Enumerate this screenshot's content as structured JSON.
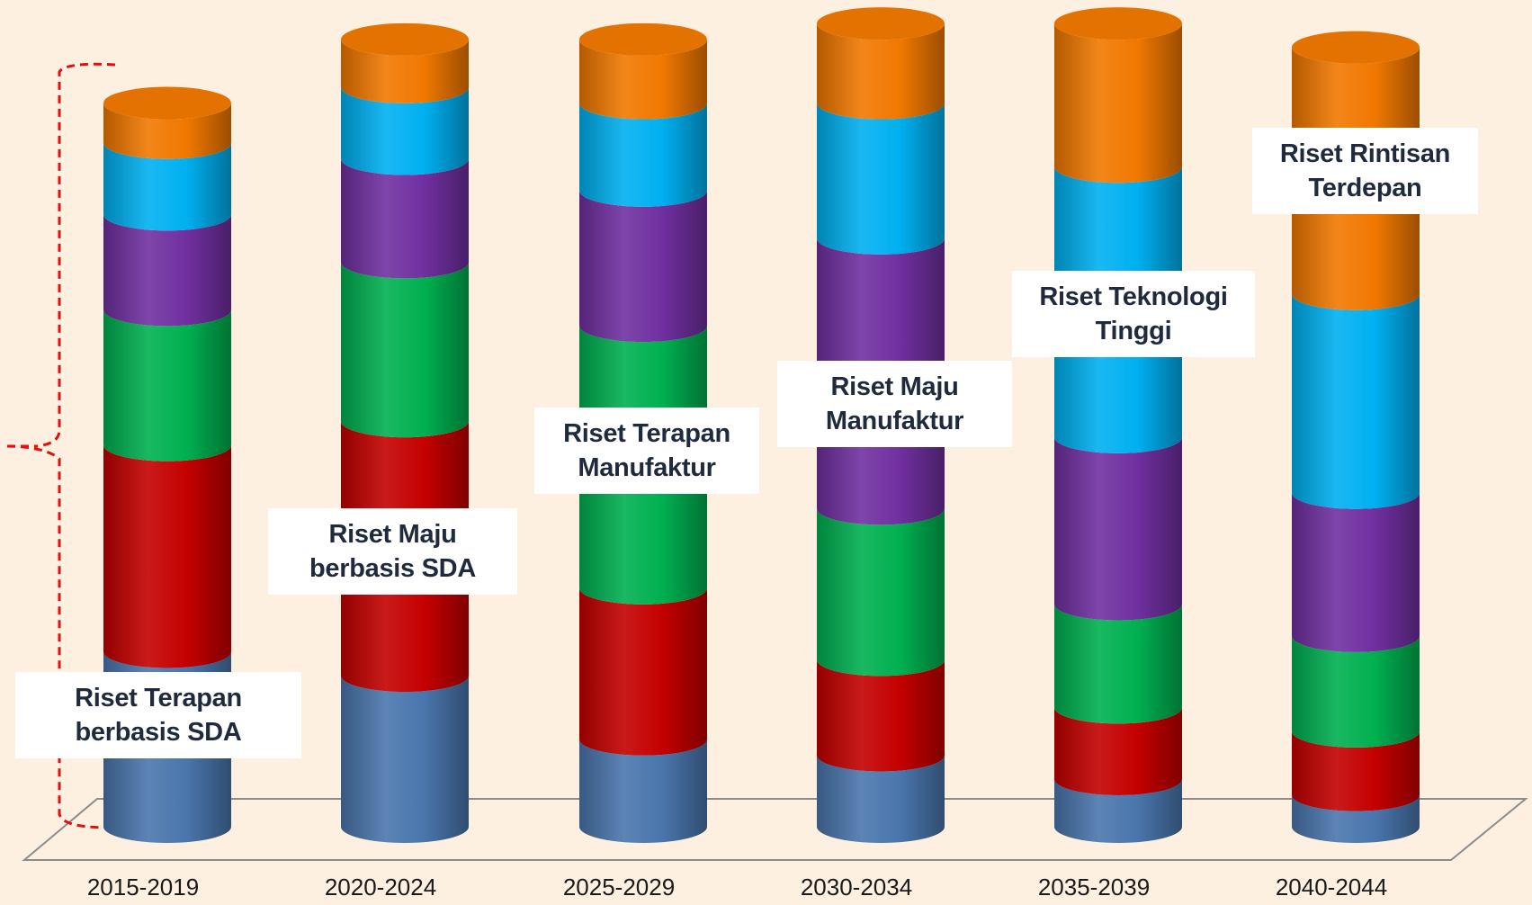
{
  "chart_data": {
    "type": "bar",
    "subtype": "stacked-3d-cylinder",
    "categories": [
      "2015-2019",
      "2020-2024",
      "2025-2029",
      "2030-2034",
      "2035-2039",
      "2040-2044"
    ],
    "series": [
      {
        "color": "#4a76ad",
        "values": [
          22,
          19,
          11,
          9,
          6,
          4
        ]
      },
      {
        "color": "#c40000",
        "values": [
          26,
          32,
          19,
          12,
          9,
          8
        ]
      },
      {
        "color": "#00b050",
        "values": [
          17,
          20,
          33,
          19,
          13,
          12
        ]
      },
      {
        "color": "#7030a0",
        "values": [
          12,
          13,
          17,
          34,
          21,
          18
        ]
      },
      {
        "color": "#00b0f0",
        "values": [
          9,
          9,
          11,
          17,
          34,
          25
        ]
      },
      {
        "color": "#f07800",
        "values": [
          5,
          6,
          8,
          10,
          18,
          31
        ]
      }
    ],
    "ylim": [
      0,
      100
    ],
    "grid": false,
    "legend": "none",
    "annotations": [
      {
        "category": "2015-2019",
        "lines": [
          "Riset Terapan",
          "berbasis SDA"
        ]
      },
      {
        "category": "2020-2024",
        "lines": [
          "Riset Maju",
          "berbasis SDA"
        ]
      },
      {
        "category": "2025-2029",
        "lines": [
          "Riset Terapan",
          "Manufaktur"
        ]
      },
      {
        "category": "2030-2034",
        "lines": [
          "Riset Maju",
          "Manufaktur"
        ]
      },
      {
        "category": "2035-2039",
        "lines": [
          "Riset Teknologi",
          "Tinggi"
        ]
      },
      {
        "category": "2040-2044",
        "lines": [
          "Riset Rintisan",
          "Terdepan"
        ]
      }
    ],
    "bracket_color": "#e01010"
  },
  "background_color": "#fdf0e1"
}
